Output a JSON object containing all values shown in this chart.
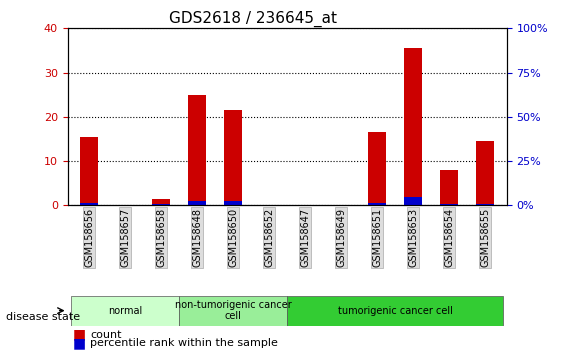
{
  "title": "GDS2618 / 236645_at",
  "samples": [
    "GSM158656",
    "GSM158657",
    "GSM158658",
    "GSM158648",
    "GSM158650",
    "GSM158652",
    "GSM158647",
    "GSM158649",
    "GSM158651",
    "GSM158653",
    "GSM158654",
    "GSM158655"
  ],
  "count_values": [
    15.5,
    0,
    1.5,
    25,
    21.5,
    0,
    0,
    0,
    16.5,
    35.5,
    8,
    14.5
  ],
  "percentile_values": [
    1.2,
    0,
    0.8,
    2.5,
    2.5,
    0,
    0,
    0,
    1.5,
    4.5,
    1.0,
    1.0
  ],
  "disease_groups": [
    {
      "label": "normal",
      "start": 0,
      "end": 3,
      "color": "#ccffcc"
    },
    {
      "label": "non-tumorigenic cancer\ncell",
      "start": 3,
      "end": 6,
      "color": "#99ff99"
    },
    {
      "label": "tumorigenic cancer cell",
      "start": 6,
      "end": 12,
      "color": "#33cc33"
    }
  ],
  "ylim_left": [
    0,
    40
  ],
  "ylim_right": [
    0,
    100
  ],
  "yticks_left": [
    0,
    10,
    20,
    30,
    40
  ],
  "yticks_right": [
    0,
    25,
    50,
    75,
    100
  ],
  "yticklabels_right": [
    "0%",
    "25%",
    "50%",
    "75%",
    "100%"
  ],
  "bar_color_count": "#cc0000",
  "bar_color_percentile": "#0000cc",
  "background_color": "#ffffff",
  "grid_color": "#000000",
  "tick_label_color_left": "#cc0000",
  "tick_label_color_right": "#0000cc",
  "bar_width": 0.5,
  "disease_state_label": "disease state"
}
